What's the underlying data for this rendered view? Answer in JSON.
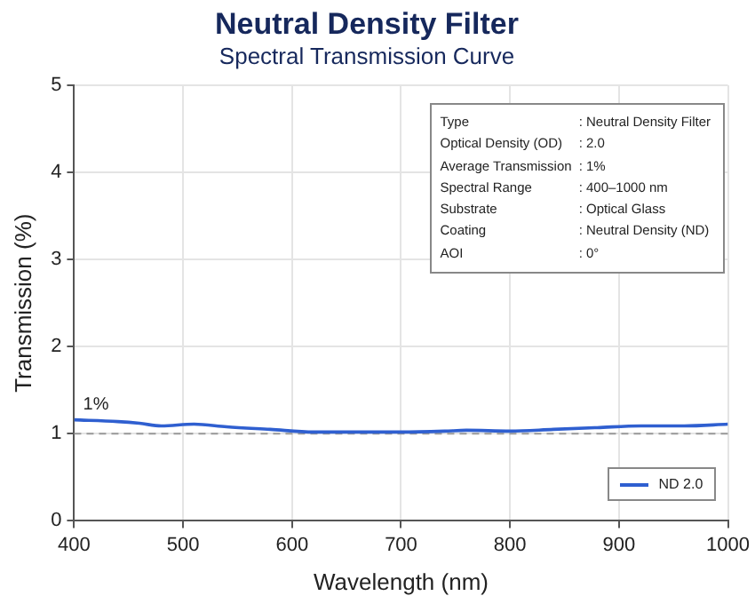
{
  "chart_data": {
    "type": "line",
    "title": "Neutral Density Filter",
    "subtitle": "Spectral Transmission Curve",
    "xlabel": "Wavelength (nm)",
    "ylabel": "Transmission (%)",
    "x": [
      400,
      440,
      460,
      480,
      510,
      540,
      580,
      620,
      660,
      700,
      740,
      760,
      800,
      840,
      880,
      920,
      960,
      1000
    ],
    "series": [
      {
        "name": "ND 2.0",
        "color": "#2f5fd0",
        "values": [
          1.16,
          1.14,
          1.12,
          1.09,
          1.11,
          1.08,
          1.05,
          1.02,
          1.02,
          1.02,
          1.03,
          1.04,
          1.03,
          1.05,
          1.07,
          1.09,
          1.09,
          1.11
        ]
      }
    ],
    "xlim": [
      400,
      1000
    ],
    "xticks": [
      400,
      500,
      600,
      700,
      800,
      900,
      1000
    ],
    "ylim": [
      0,
      5
    ],
    "yticks": [
      0,
      1,
      2,
      3,
      4,
      5
    ],
    "ref_lines": [
      {
        "axis": "y",
        "value": 1,
        "color": "#999999",
        "line_style": "dashed"
      }
    ],
    "annotations": [
      {
        "text": "1%",
        "x": 420,
        "y": 1.16
      },
      "Type : Neutral Density Filter",
      "Optical Density (OD) : 2.0",
      "Average Transmission : 1%",
      "Spectral Range : 400–1000 nm",
      "Substrate : Optical Glass",
      "Coating : Neutral Density (ND)",
      "AOI : 0°"
    ],
    "grid": true,
    "legend": "bottom right",
    "marker": "none",
    "line_style": "solid"
  }
}
